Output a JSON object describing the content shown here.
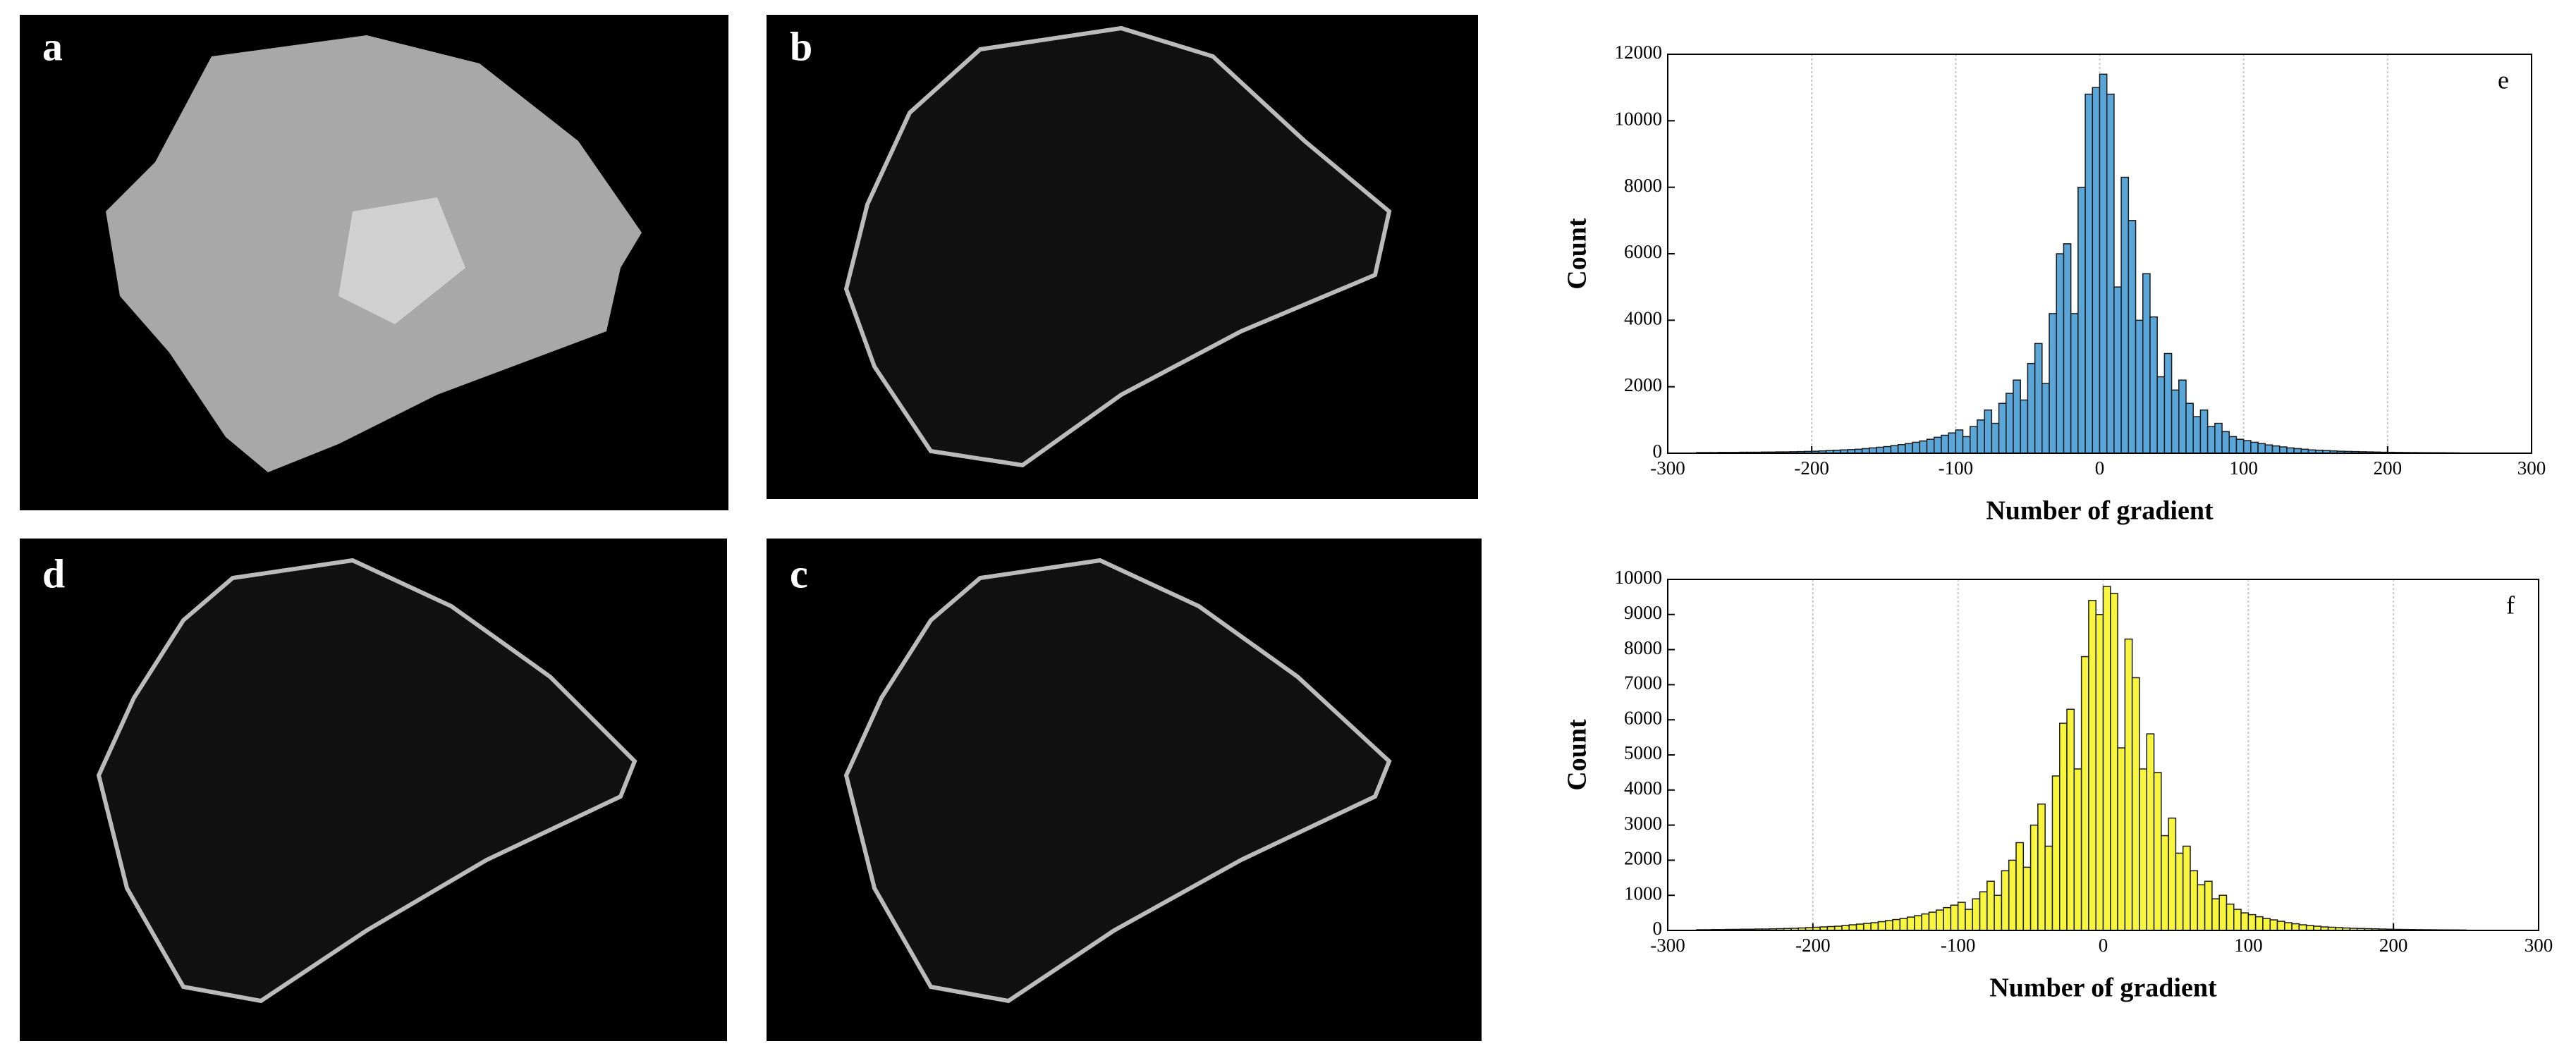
{
  "panels": [
    {
      "label": "a"
    },
    {
      "label": "b"
    },
    {
      "label": "d"
    },
    {
      "label": "c"
    }
  ],
  "chart_data": [
    {
      "type": "histogram",
      "annotation": "e",
      "xlabel": "Number of gradient",
      "ylabel": "Count",
      "color": "#5ba6d8",
      "edgecolor": "#1a1a1a",
      "grid": "x",
      "xlim": [
        -300,
        300
      ],
      "xticks": [
        -300,
        -200,
        -100,
        0,
        100,
        200,
        300
      ],
      "ylim": [
        0,
        12000
      ],
      "yticks": [
        0,
        2000,
        4000,
        6000,
        8000,
        10000,
        12000
      ],
      "bins": [
        -280,
        -275,
        -270,
        -265,
        -260,
        -255,
        -250,
        -245,
        -240,
        -235,
        -230,
        -225,
        -220,
        -215,
        -210,
        -205,
        -200,
        -195,
        -190,
        -185,
        -180,
        -175,
        -170,
        -165,
        -160,
        -155,
        -150,
        -145,
        -140,
        -135,
        -130,
        -125,
        -120,
        -115,
        -110,
        -105,
        -100,
        -95,
        -90,
        -85,
        -80,
        -75,
        -70,
        -65,
        -60,
        -55,
        -50,
        -45,
        -40,
        -35,
        -30,
        -25,
        -20,
        -15,
        -10,
        -5,
        0,
        5,
        10,
        15,
        20,
        25,
        30,
        35,
        40,
        45,
        50,
        55,
        60,
        65,
        70,
        75,
        80,
        85,
        90,
        95,
        100,
        105,
        110,
        115,
        120,
        125,
        130,
        135,
        140,
        145,
        150,
        155,
        160,
        165,
        170,
        175,
        180,
        185,
        190,
        195,
        200,
        205,
        210,
        215,
        220,
        225,
        230,
        235,
        240,
        245,
        250
      ],
      "values": [
        20,
        20,
        20,
        25,
        25,
        25,
        30,
        30,
        30,
        35,
        35,
        40,
        40,
        45,
        50,
        55,
        60,
        70,
        80,
        90,
        100,
        110,
        120,
        140,
        160,
        180,
        200,
        230,
        260,
        290,
        330,
        370,
        420,
        480,
        540,
        610,
        700,
        500,
        800,
        1000,
        1300,
        900,
        1500,
        1800,
        2200,
        1600,
        2700,
        3300,
        2100,
        4200,
        6000,
        6300,
        4200,
        8000,
        10800,
        11000,
        11400,
        10800,
        5000,
        8300,
        7000,
        4000,
        5400,
        4100,
        2300,
        3000,
        1900,
        2200,
        1500,
        1100,
        1300,
        800,
        900,
        650,
        500,
        420,
        380,
        330,
        290,
        250,
        220,
        190,
        160,
        140,
        120,
        100,
        90,
        80,
        70,
        60,
        55,
        50,
        45,
        40,
        35,
        30,
        28,
        25,
        22,
        20,
        18,
        16,
        15,
        14,
        12,
        10
      ]
    },
    {
      "type": "histogram",
      "annotation": "f",
      "xlabel": "Number of gradient",
      "ylabel": "Count",
      "color": "#f7f53c",
      "edgecolor": "#1a1a1a",
      "grid": "x",
      "xlim": [
        -300,
        300
      ],
      "xticks": [
        -300,
        -200,
        -100,
        0,
        100,
        200,
        300
      ],
      "ylim": [
        0,
        10000
      ],
      "yticks": [
        0,
        1000,
        2000,
        3000,
        4000,
        5000,
        6000,
        7000,
        8000,
        9000,
        10000
      ],
      "bins": [
        -280,
        -275,
        -270,
        -265,
        -260,
        -255,
        -250,
        -245,
        -240,
        -235,
        -230,
        -225,
        -220,
        -215,
        -210,
        -205,
        -200,
        -195,
        -190,
        -185,
        -180,
        -175,
        -170,
        -165,
        -160,
        -155,
        -150,
        -145,
        -140,
        -135,
        -130,
        -125,
        -120,
        -115,
        -110,
        -105,
        -100,
        -95,
        -90,
        -85,
        -80,
        -75,
        -70,
        -65,
        -60,
        -55,
        -50,
        -45,
        -40,
        -35,
        -30,
        -25,
        -20,
        -15,
        -10,
        -5,
        0,
        5,
        10,
        15,
        20,
        25,
        30,
        35,
        40,
        45,
        50,
        55,
        60,
        65,
        70,
        75,
        80,
        85,
        90,
        95,
        100,
        105,
        110,
        115,
        120,
        125,
        130,
        135,
        140,
        145,
        150,
        155,
        160,
        165,
        170,
        175,
        180,
        185,
        190,
        195,
        200,
        205,
        210,
        215,
        220,
        225,
        230,
        235,
        240,
        245,
        250
      ],
      "values": [
        20,
        20,
        25,
        25,
        30,
        30,
        35,
        35,
        40,
        40,
        45,
        50,
        55,
        60,
        70,
        80,
        90,
        100,
        110,
        120,
        140,
        160,
        180,
        200,
        220,
        250,
        280,
        310,
        340,
        380,
        420,
        470,
        520,
        580,
        650,
        720,
        800,
        600,
        900,
        1100,
        1400,
        1000,
        1700,
        2000,
        2500,
        1800,
        3000,
        3600,
        2400,
        4400,
        5900,
        6300,
        4600,
        7800,
        9400,
        9000,
        9800,
        9600,
        5200,
        8300,
        7200,
        4600,
        5600,
        4500,
        2700,
        3200,
        2200,
        2400,
        1700,
        1300,
        1400,
        900,
        1000,
        750,
        600,
        500,
        450,
        390,
        340,
        300,
        260,
        220,
        190,
        160,
        140,
        120,
        100,
        90,
        80,
        70,
        60,
        55,
        50,
        45,
        40,
        35,
        30,
        28,
        25,
        22,
        20,
        18,
        16,
        15,
        14,
        12
      ]
    }
  ]
}
